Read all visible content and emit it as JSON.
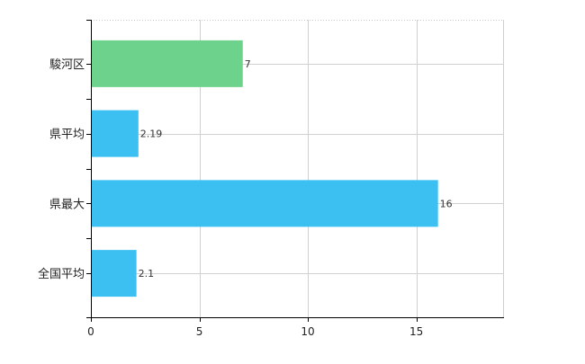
{
  "chart_data": {
    "type": "bar",
    "orientation": "horizontal",
    "title": "",
    "xlabel": "",
    "ylabel": "",
    "categories": [
      "駿河区",
      "県平均",
      "県最大",
      "全国平均"
    ],
    "values": [
      7,
      2.19,
      16,
      2.1
    ],
    "value_labels": [
      "7",
      "2.19",
      "16",
      "2.1"
    ],
    "bar_colors": [
      "#6dd38c",
      "#3cbff1",
      "#3cbff1",
      "#3cbff1"
    ],
    "xlim": [
      0,
      19
    ],
    "xticks": [
      0,
      5,
      10,
      15
    ],
    "xtick_labels": [
      "0",
      "5",
      "10",
      "15"
    ],
    "grid": true,
    "grid_color": "#d0d0d0",
    "axis_color": "#000000",
    "legend": "none"
  }
}
